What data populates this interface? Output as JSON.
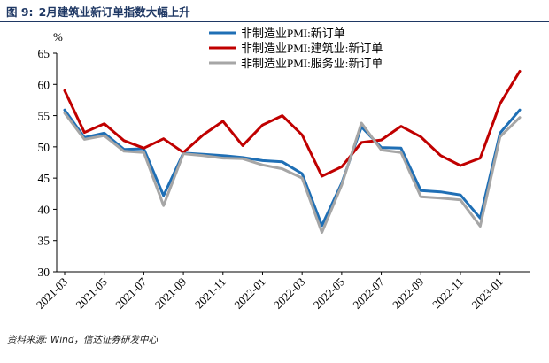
{
  "figure": {
    "title_label": "图 9:",
    "title_text": "2月建筑业新订单指数大幅上升",
    "source": "资料来源: Wind，信达证券研发中心",
    "unit": "%"
  },
  "colors": {
    "title": "#1f3864",
    "series": [
      "#1f6fb5",
      "#c00000",
      "#a6a6a6"
    ]
  },
  "chart_data": {
    "type": "line",
    "title": "2月建筑业新订单指数大幅上升",
    "ylabel": "%",
    "xlabel": "",
    "ylim": [
      30,
      65
    ],
    "yticks": [
      30,
      35,
      40,
      45,
      50,
      55,
      60,
      65
    ],
    "x_tick_labels": [
      "2021-03",
      "2021-05",
      "2021-07",
      "2021-09",
      "2021-11",
      "2022-01",
      "2022-03",
      "2022-05",
      "2022-07",
      "2022-09",
      "2022-11",
      "2023-01"
    ],
    "x": [
      "2021-03",
      "2021-04",
      "2021-05",
      "2021-06",
      "2021-07",
      "2021-08",
      "2021-09",
      "2021-10",
      "2021-11",
      "2021-12",
      "2022-01",
      "2022-02",
      "2022-03",
      "2022-04",
      "2022-05",
      "2022-06",
      "2022-07",
      "2022-08",
      "2022-09",
      "2022-10",
      "2022-11",
      "2022-12",
      "2023-01",
      "2023-02"
    ],
    "legend_position": "top-center",
    "grid": false,
    "series": [
      {
        "name": "非制造业PMI:新订单",
        "values": [
          55.9,
          51.5,
          52.2,
          49.6,
          49.7,
          42.2,
          49.0,
          48.8,
          48.6,
          48.3,
          47.8,
          47.6,
          45.7,
          37.4,
          44.2,
          53.2,
          49.9,
          49.8,
          43.0,
          42.8,
          42.3,
          38.6,
          52.2,
          55.9
        ]
      },
      {
        "name": "非制造业PMI:建筑业:新订单",
        "values": [
          59.0,
          52.3,
          53.7,
          51.0,
          49.8,
          51.3,
          49.1,
          51.9,
          54.1,
          50.2,
          53.5,
          55.0,
          51.9,
          45.3,
          46.8,
          50.7,
          51.1,
          53.3,
          51.6,
          48.6,
          47.0,
          48.2,
          56.9,
          62.1
        ]
      },
      {
        "name": "非制造业PMI:服务业:新订单",
        "values": [
          55.4,
          51.2,
          51.8,
          49.3,
          49.1,
          40.6,
          48.9,
          48.6,
          48.2,
          48.1,
          47.1,
          46.5,
          45.0,
          36.3,
          43.9,
          53.8,
          49.5,
          49.1,
          42.0,
          41.8,
          41.5,
          37.3,
          51.6,
          54.7
        ]
      }
    ]
  }
}
